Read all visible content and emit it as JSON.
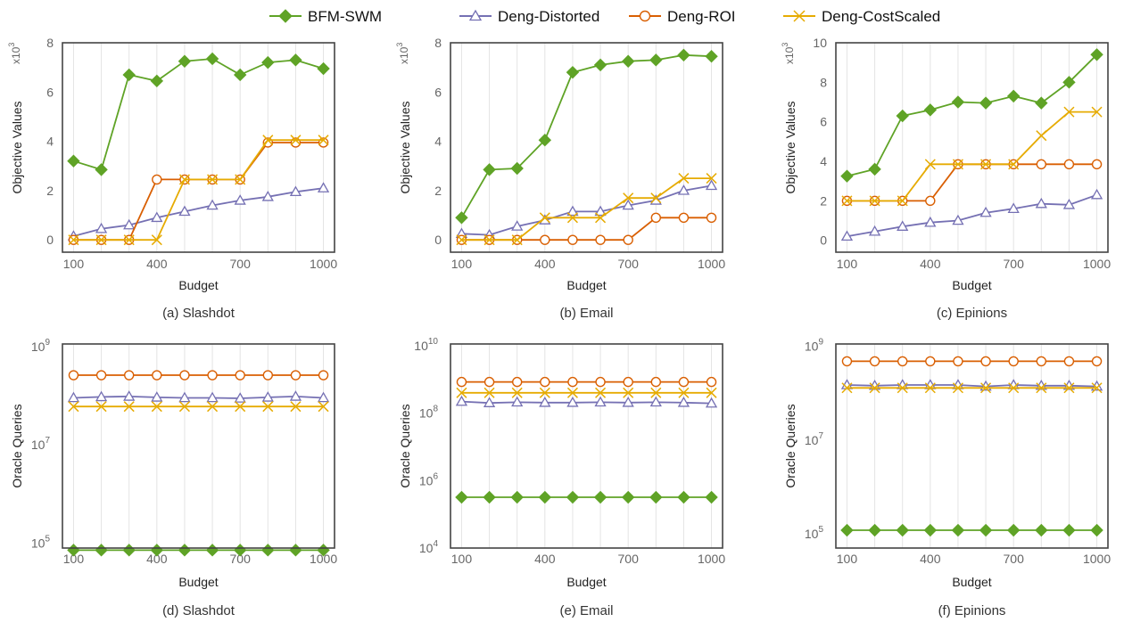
{
  "colors": {
    "BFM-SWM": "#5fa326",
    "Deng-Distorted": "#7570b3",
    "Deng-ROI": "#d95f02",
    "Deng-CostScaled": "#e6ab02",
    "grid": "#e4e4e4",
    "frame": "#444444"
  },
  "legend": [
    {
      "name": "BFM-SWM",
      "marker": "diamond"
    },
    {
      "name": "Deng-Distorted",
      "marker": "triangle"
    },
    {
      "name": "Deng-ROI",
      "marker": "circle"
    },
    {
      "name": "Deng-CostScaled",
      "marker": "x"
    }
  ],
  "chart_data": [
    {
      "type": "line",
      "caption": "(a) Slashdot",
      "xlabel": "Budget",
      "ylabel": "Objective Values",
      "multiplier": "x10",
      "multiplier_exp": "3",
      "x": [
        100,
        200,
        300,
        400,
        500,
        600,
        700,
        800,
        900,
        1000
      ],
      "xticks": [
        100,
        400,
        700,
        1000
      ],
      "yticks": [
        0,
        2,
        4,
        6,
        8
      ],
      "ytick_labels": [
        "0",
        "2",
        "4",
        "6",
        "8"
      ],
      "ylim": [
        -0.5,
        8
      ],
      "yscale": "linear",
      "series": [
        {
          "name": "BFM-SWM",
          "values": [
            3.2,
            2.85,
            6.7,
            6.45,
            7.25,
            7.35,
            6.7,
            7.2,
            7.3,
            6.95
          ]
        },
        {
          "name": "Deng-Distorted",
          "values": [
            0.15,
            0.45,
            0.6,
            0.9,
            1.15,
            1.4,
            1.6,
            1.75,
            1.95,
            2.1
          ]
        },
        {
          "name": "Deng-ROI",
          "values": [
            0,
            0,
            0,
            2.45,
            2.45,
            2.45,
            2.45,
            3.95,
            3.95,
            3.95
          ]
        },
        {
          "name": "Deng-CostScaled",
          "values": [
            0,
            0,
            0,
            0,
            2.45,
            2.45,
            2.45,
            4.05,
            4.05,
            4.05
          ]
        }
      ]
    },
    {
      "type": "line",
      "caption": "(b) Email",
      "xlabel": "Budget",
      "ylabel": "Objective Values",
      "multiplier": "x10",
      "multiplier_exp": "3",
      "x": [
        100,
        200,
        300,
        400,
        500,
        600,
        700,
        800,
        900,
        1000
      ],
      "xticks": [
        100,
        400,
        700,
        1000
      ],
      "yticks": [
        0,
        2,
        4,
        6,
        8
      ],
      "ytick_labels": [
        "0",
        "2",
        "4",
        "6",
        "8"
      ],
      "ylim": [
        -0.5,
        8
      ],
      "yscale": "linear",
      "series": [
        {
          "name": "BFM-SWM",
          "values": [
            0.9,
            2.85,
            2.9,
            4.05,
            6.8,
            7.1,
            7.25,
            7.3,
            7.5,
            7.45
          ]
        },
        {
          "name": "Deng-Distorted",
          "values": [
            0.25,
            0.2,
            0.55,
            0.8,
            1.15,
            1.15,
            1.4,
            1.6,
            2.0,
            2.2
          ]
        },
        {
          "name": "Deng-ROI",
          "values": [
            0,
            0,
            0,
            0,
            0,
            0,
            0,
            0.9,
            0.9,
            0.9
          ]
        },
        {
          "name": "Deng-CostScaled",
          "values": [
            0,
            0,
            0,
            0.9,
            0.9,
            0.9,
            1.7,
            1.7,
            2.5,
            2.5
          ]
        }
      ]
    },
    {
      "type": "line",
      "caption": "(c) Epinions",
      "xlabel": "Budget",
      "ylabel": "Objective Values",
      "multiplier": "x10",
      "multiplier_exp": "3",
      "x": [
        100,
        200,
        300,
        400,
        500,
        600,
        700,
        800,
        900,
        1000
      ],
      "xticks": [
        100,
        400,
        700,
        1000
      ],
      "yticks": [
        0,
        2,
        4,
        6,
        8,
        10
      ],
      "ytick_labels": [
        "0",
        "2",
        "4",
        "6",
        "8",
        "10"
      ],
      "ylim": [
        -0.6,
        10
      ],
      "yscale": "linear",
      "series": [
        {
          "name": "BFM-SWM",
          "values": [
            3.25,
            3.6,
            6.3,
            6.6,
            7.0,
            6.95,
            7.3,
            6.95,
            8.0,
            9.4
          ]
        },
        {
          "name": "Deng-Distorted",
          "values": [
            0.2,
            0.45,
            0.7,
            0.9,
            1.0,
            1.4,
            1.6,
            1.85,
            1.8,
            2.3
          ]
        },
        {
          "name": "Deng-ROI",
          "values": [
            2.0,
            2.0,
            2.0,
            2.0,
            3.85,
            3.85,
            3.85,
            3.85,
            3.85,
            3.85
          ]
        },
        {
          "name": "Deng-CostScaled",
          "values": [
            2.0,
            2.0,
            2.0,
            3.85,
            3.85,
            3.85,
            3.85,
            5.3,
            6.5,
            6.5
          ]
        }
      ]
    },
    {
      "type": "line",
      "caption": "(d) Slashdot",
      "xlabel": "Budget",
      "ylabel": "Oracle Queries",
      "x": [
        100,
        200,
        300,
        400,
        500,
        600,
        700,
        800,
        900,
        1000
      ],
      "xticks": [
        100,
        400,
        700,
        1000
      ],
      "yticks": [
        5,
        7,
        9
      ],
      "ytick_labels": [
        "10",
        "10",
        "10"
      ],
      "ytick_exps": [
        "5",
        "7",
        "9"
      ],
      "ylim": [
        4.9,
        9.05
      ],
      "yscale": "log",
      "series": [
        {
          "name": "BFM-SWM",
          "values": [
            72000,
            72000,
            72000,
            72000,
            72000,
            72000,
            72000,
            72000,
            72000,
            72000
          ]
        },
        {
          "name": "Deng-Distorted",
          "values": [
            90000000,
            94000000,
            96000000,
            92000000,
            90000000,
            90000000,
            88000000,
            92000000,
            96000000,
            90000000
          ]
        },
        {
          "name": "Deng-ROI",
          "values": [
            260000000,
            260000000,
            260000000,
            260000000,
            260000000,
            260000000,
            260000000,
            260000000,
            260000000,
            260000000
          ]
        },
        {
          "name": "Deng-CostScaled",
          "values": [
            60000000,
            60000000,
            60000000,
            60000000,
            60000000,
            60000000,
            60000000,
            60000000,
            60000000,
            60000000
          ]
        }
      ]
    },
    {
      "type": "line",
      "caption": "(e) Email",
      "xlabel": "Budget",
      "ylabel": "Oracle Queries",
      "x": [
        100,
        200,
        300,
        400,
        500,
        600,
        700,
        800,
        900,
        1000
      ],
      "xticks": [
        100,
        400,
        700,
        1000
      ],
      "yticks": [
        4,
        6,
        8,
        10
      ],
      "ytick_labels": [
        "10",
        "10",
        "10",
        "10"
      ],
      "ytick_exps": [
        "4",
        "6",
        "8",
        "10"
      ],
      "ylim": [
        4,
        10.05
      ],
      "yscale": "log",
      "series": [
        {
          "name": "BFM-SWM",
          "values": [
            320000,
            320000,
            320000,
            320000,
            320000,
            320000,
            320000,
            320000,
            320000,
            320000
          ]
        },
        {
          "name": "Deng-Distorted",
          "values": [
            220000000,
            200000000,
            210000000,
            205000000,
            205000000,
            210000000,
            205000000,
            210000000,
            205000000,
            195000000
          ]
        },
        {
          "name": "Deng-ROI",
          "values": [
            840000000,
            840000000,
            840000000,
            840000000,
            840000000,
            840000000,
            840000000,
            840000000,
            840000000,
            840000000
          ]
        },
        {
          "name": "Deng-CostScaled",
          "values": [
            400000000,
            400000000,
            400000000,
            400000000,
            400000000,
            400000000,
            400000000,
            400000000,
            400000000,
            400000000
          ]
        }
      ]
    },
    {
      "type": "line",
      "caption": "(f) Epinions",
      "xlabel": "Budget",
      "ylabel": "Oracle Queries",
      "x": [
        100,
        200,
        300,
        400,
        500,
        600,
        700,
        800,
        900,
        1000
      ],
      "xticks": [
        100,
        400,
        700,
        1000
      ],
      "yticks": [
        5,
        7,
        9
      ],
      "ytick_labels": [
        "10",
        "10",
        "10"
      ],
      "ytick_exps": [
        "5",
        "7",
        "9"
      ],
      "ylim": [
        4.7,
        9.05
      ],
      "yscale": "log",
      "series": [
        {
          "name": "BFM-SWM",
          "values": [
            120000,
            120000,
            120000,
            120000,
            120000,
            120000,
            120000,
            120000,
            120000,
            120000
          ]
        },
        {
          "name": "Deng-Distorted",
          "values": [
            150000000,
            145000000,
            150000000,
            150000000,
            150000000,
            140000000,
            150000000,
            145000000,
            145000000,
            140000000
          ]
        },
        {
          "name": "Deng-ROI",
          "values": [
            480000000,
            480000000,
            480000000,
            480000000,
            480000000,
            480000000,
            480000000,
            480000000,
            480000000,
            480000000
          ]
        },
        {
          "name": "Deng-CostScaled",
          "values": [
            130000000,
            130000000,
            130000000,
            130000000,
            130000000,
            130000000,
            130000000,
            130000000,
            130000000,
            130000000
          ]
        }
      ]
    }
  ]
}
